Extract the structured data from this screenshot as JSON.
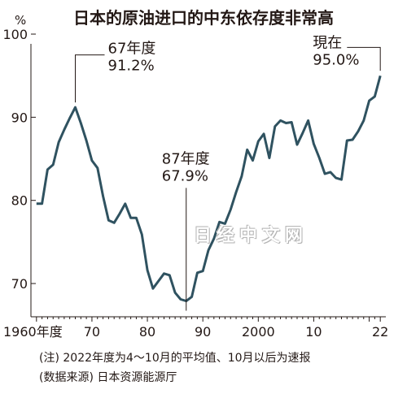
{
  "chart_data": {
    "type": "line",
    "title": "日本的原油进口的中东依存度非常高",
    "ylabel": "%",
    "xlabel": "",
    "ylim": [
      66,
      100
    ],
    "xlim": [
      1959,
      2023
    ],
    "yticks": [
      70,
      80,
      90,
      100
    ],
    "xticks": [
      {
        "x": 1960,
        "label": "1960年度"
      },
      {
        "x": 1970,
        "label": "70"
      },
      {
        "x": 1980,
        "label": "80"
      },
      {
        "x": 1990,
        "label": "90"
      },
      {
        "x": 2000,
        "label": "2000"
      },
      {
        "x": 2010,
        "label": "10"
      },
      {
        "x": 2022,
        "label": "22"
      }
    ],
    "grid": false,
    "series": [
      {
        "color": "#2f5260",
        "points": [
          [
            1960,
            79.6
          ],
          [
            1961,
            79.6
          ],
          [
            1962,
            83.7
          ],
          [
            1963,
            84.3
          ],
          [
            1964,
            87.0
          ],
          [
            1965,
            88.5
          ],
          [
            1966,
            89.9
          ],
          [
            1967,
            91.2
          ],
          [
            1968,
            89.3
          ],
          [
            1969,
            87.2
          ],
          [
            1970,
            84.8
          ],
          [
            1971,
            83.9
          ],
          [
            1972,
            80.5
          ],
          [
            1973,
            77.6
          ],
          [
            1974,
            77.3
          ],
          [
            1975,
            78.4
          ],
          [
            1976,
            79.6
          ],
          [
            1977,
            77.9
          ],
          [
            1978,
            77.9
          ],
          [
            1979,
            75.9
          ],
          [
            1980,
            71.6
          ],
          [
            1981,
            69.4
          ],
          [
            1982,
            70.3
          ],
          [
            1983,
            71.2
          ],
          [
            1984,
            71.0
          ],
          [
            1985,
            68.9
          ],
          [
            1986,
            68.1
          ],
          [
            1987,
            67.9
          ],
          [
            1988,
            68.4
          ],
          [
            1989,
            71.3
          ],
          [
            1990,
            71.5
          ],
          [
            1991,
            74.0
          ],
          [
            1992,
            75.4
          ],
          [
            1993,
            77.4
          ],
          [
            1994,
            77.2
          ],
          [
            1995,
            78.9
          ],
          [
            1996,
            81.0
          ],
          [
            1997,
            82.9
          ],
          [
            1998,
            86.1
          ],
          [
            1999,
            84.8
          ],
          [
            2000,
            87.1
          ],
          [
            2001,
            88.0
          ],
          [
            2002,
            85.1
          ],
          [
            2003,
            88.9
          ],
          [
            2004,
            89.6
          ],
          [
            2005,
            89.3
          ],
          [
            2006,
            89.4
          ],
          [
            2007,
            86.7
          ],
          [
            2008,
            88.1
          ],
          [
            2009,
            89.6
          ],
          [
            2010,
            86.8
          ],
          [
            2011,
            85.1
          ],
          [
            2012,
            83.2
          ],
          [
            2013,
            83.4
          ],
          [
            2014,
            82.7
          ],
          [
            2015,
            82.5
          ],
          [
            2016,
            87.2
          ],
          [
            2017,
            87.3
          ],
          [
            2018,
            88.3
          ],
          [
            2019,
            89.6
          ],
          [
            2020,
            92.0
          ],
          [
            2021,
            92.5
          ],
          [
            2022,
            95.0
          ]
        ]
      }
    ],
    "annotations": [
      {
        "x": 1967,
        "y": 91.2,
        "lines": [
          "67年度",
          "91.2%"
        ]
      },
      {
        "x": 1987,
        "y": 67.9,
        "lines": [
          "87年度",
          "67.9%"
        ]
      },
      {
        "x": 2022,
        "y": 95.0,
        "lines": [
          "現在",
          "95.0%"
        ]
      }
    ]
  },
  "notes": {
    "note1": "(注) 2022年度为4～10月的平均值、10月以后为速报",
    "note2": "(数据来源) 日本资源能源厅"
  },
  "watermark": "日经中文网"
}
